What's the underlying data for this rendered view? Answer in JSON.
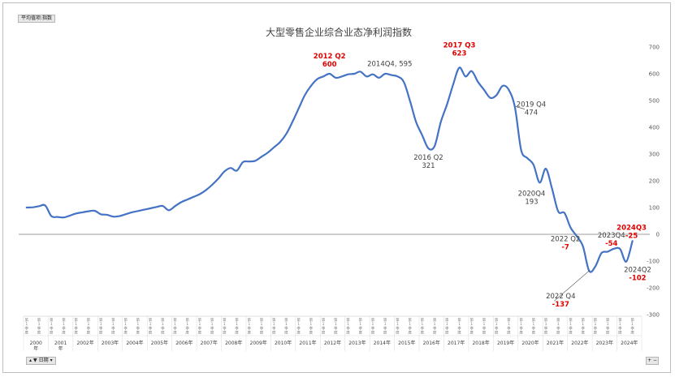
{
  "controls": {
    "pivot_value_field": "平均值项:指数",
    "date_filter_label": "日期",
    "filter_icon": "filter-icon",
    "dropdown_icon": "dropdown-icon",
    "expand_icon": "plus-icon",
    "collapse_icon": "minus-icon"
  },
  "colors": {
    "line": "#4472c4",
    "highlight": "#e00000",
    "axis": "#7f7f7f"
  },
  "chart_data": {
    "type": "line",
    "title": "大型零售企业综合业态净利润指数",
    "ylim": [
      -300,
      700
    ],
    "y_ticks": [
      700,
      600,
      500,
      400,
      300,
      200,
      100,
      0,
      -100,
      -200,
      -300
    ],
    "grid": false,
    "legend": "none",
    "x_axis_years": [
      "2000年",
      "2001年",
      "2002年",
      "2003年",
      "2004年",
      "2005年",
      "2006年",
      "2007年",
      "2008年",
      "2009年",
      "2010年",
      "2011年",
      "2012年",
      "2013年",
      "2014年",
      "2015年",
      "2016年",
      "2017年",
      "2018年",
      "2019年",
      "2020年",
      "2021年",
      "2022年",
      "2023年",
      "2024年"
    ],
    "x_axis_year_lines": [
      [
        "2000",
        "年"
      ],
      [
        "2001",
        "年"
      ]
    ],
    "x_axis_quarter_label": "第1季度",
    "series": [
      {
        "values": [
          {
            "x": "2000Q1",
            "y": 100
          },
          {
            "x": "2000Q2",
            "y": 101
          },
          {
            "x": "2000Q3",
            "y": 105
          },
          {
            "x": "2000Q4",
            "y": 108
          },
          {
            "x": "2001Q1",
            "y": 68
          },
          {
            "x": "2001Q2",
            "y": 65
          },
          {
            "x": "2001Q3",
            "y": 63
          },
          {
            "x": "2001Q4",
            "y": 70
          },
          {
            "x": "2002Q1",
            "y": 78
          },
          {
            "x": "2002Q2",
            "y": 82
          },
          {
            "x": "2002Q3",
            "y": 86
          },
          {
            "x": "2002Q4",
            "y": 88
          },
          {
            "x": "2003Q1",
            "y": 75
          },
          {
            "x": "2003Q2",
            "y": 73
          },
          {
            "x": "2003Q3",
            "y": 66
          },
          {
            "x": "2003Q4",
            "y": 68
          },
          {
            "x": "2004Q1",
            "y": 75
          },
          {
            "x": "2004Q2",
            "y": 82
          },
          {
            "x": "2004Q3",
            "y": 87
          },
          {
            "x": "2004Q4",
            "y": 92
          },
          {
            "x": "2005Q1",
            "y": 97
          },
          {
            "x": "2005Q2",
            "y": 102
          },
          {
            "x": "2005Q3",
            "y": 106
          },
          {
            "x": "2005Q4",
            "y": 90
          },
          {
            "x": "2006Q1",
            "y": 105
          },
          {
            "x": "2006Q2",
            "y": 120
          },
          {
            "x": "2006Q3",
            "y": 130
          },
          {
            "x": "2006Q4",
            "y": 140
          },
          {
            "x": "2007Q1",
            "y": 150
          },
          {
            "x": "2007Q2",
            "y": 165
          },
          {
            "x": "2007Q3",
            "y": 185
          },
          {
            "x": "2007Q4",
            "y": 208
          },
          {
            "x": "2008Q1",
            "y": 235
          },
          {
            "x": "2008Q2",
            "y": 248
          },
          {
            "x": "2008Q3",
            "y": 238
          },
          {
            "x": "2008Q4",
            "y": 270
          },
          {
            "x": "2009Q1",
            "y": 272
          },
          {
            "x": "2009Q2",
            "y": 275
          },
          {
            "x": "2009Q3",
            "y": 290
          },
          {
            "x": "2009Q4",
            "y": 305
          },
          {
            "x": "2010Q1",
            "y": 325
          },
          {
            "x": "2010Q2",
            "y": 345
          },
          {
            "x": "2010Q3",
            "y": 375
          },
          {
            "x": "2010Q4",
            "y": 420
          },
          {
            "x": "2011Q1",
            "y": 470
          },
          {
            "x": "2011Q2",
            "y": 520
          },
          {
            "x": "2011Q3",
            "y": 555
          },
          {
            "x": "2011Q4",
            "y": 580
          },
          {
            "x": "2012Q1",
            "y": 590
          },
          {
            "x": "2012Q2",
            "y": 600
          },
          {
            "x": "2012Q3",
            "y": 585
          },
          {
            "x": "2012Q4",
            "y": 590
          },
          {
            "x": "2013Q1",
            "y": 598
          },
          {
            "x": "2013Q2",
            "y": 600
          },
          {
            "x": "2013Q3",
            "y": 608
          },
          {
            "x": "2013Q4",
            "y": 590
          },
          {
            "x": "2014Q1",
            "y": 598
          },
          {
            "x": "2014Q2",
            "y": 585
          },
          {
            "x": "2014Q3",
            "y": 600
          },
          {
            "x": "2014Q4",
            "y": 595
          },
          {
            "x": "2015Q1",
            "y": 590
          },
          {
            "x": "2015Q2",
            "y": 570
          },
          {
            "x": "2015Q3",
            "y": 500
          },
          {
            "x": "2015Q4",
            "y": 420
          },
          {
            "x": "2016Q1",
            "y": 370
          },
          {
            "x": "2016Q2",
            "y": 321
          },
          {
            "x": "2016Q3",
            "y": 330
          },
          {
            "x": "2016Q4",
            "y": 420
          },
          {
            "x": "2017Q1",
            "y": 485
          },
          {
            "x": "2017Q2",
            "y": 560
          },
          {
            "x": "2017Q3",
            "y": 623
          },
          {
            "x": "2017Q4",
            "y": 590
          },
          {
            "x": "2018Q1",
            "y": 610
          },
          {
            "x": "2018Q2",
            "y": 570
          },
          {
            "x": "2018Q3",
            "y": 540
          },
          {
            "x": "2018Q4",
            "y": 510
          },
          {
            "x": "2019Q1",
            "y": 520
          },
          {
            "x": "2019Q2",
            "y": 555
          },
          {
            "x": "2019Q3",
            "y": 540
          },
          {
            "x": "2019Q4",
            "y": 474
          },
          {
            "x": "2020Q1",
            "y": 315
          },
          {
            "x": "2020Q2",
            "y": 285
          },
          {
            "x": "2020Q3",
            "y": 260
          },
          {
            "x": "2020Q4",
            "y": 193
          },
          {
            "x": "2021Q1",
            "y": 245
          },
          {
            "x": "2021Q2",
            "y": 170
          },
          {
            "x": "2021Q3",
            "y": 85
          },
          {
            "x": "2021Q4",
            "y": 80
          },
          {
            "x": "2022Q1",
            "y": 25
          },
          {
            "x": "2022Q2",
            "y": -7
          },
          {
            "x": "2022Q3",
            "y": -45
          },
          {
            "x": "2022Q4",
            "y": -137
          },
          {
            "x": "2023Q1",
            "y": -120
          },
          {
            "x": "2023Q2",
            "y": -70
          },
          {
            "x": "2023Q3",
            "y": -65
          },
          {
            "x": "2023Q4",
            "y": -54
          },
          {
            "x": "2024Q1",
            "y": -55
          },
          {
            "x": "2024Q2",
            "y": -102
          },
          {
            "x": "2024Q3",
            "y": -25
          }
        ]
      }
    ],
    "annotations": [
      {
        "x": "2012Q2",
        "lines": [
          "2012 Q2",
          "600"
        ],
        "style": "red"
      },
      {
        "x": "2014Q4",
        "lines": [
          "2014Q4, 595"
        ],
        "style": "normal"
      },
      {
        "x": "2016Q2",
        "lines": [
          "2016 Q2",
          "321"
        ],
        "style": "normal"
      },
      {
        "x": "2017Q3",
        "lines": [
          "2017 Q3",
          "623"
        ],
        "style": "red"
      },
      {
        "x": "2019Q4",
        "lines": [
          "2019 Q4",
          "474"
        ],
        "style": "normal"
      },
      {
        "x": "2020Q4",
        "lines": [
          "2020Q4",
          "193"
        ],
        "style": "normal"
      },
      {
        "x": "2022Q2",
        "lines": [
          "2022 Q2",
          "-7"
        ],
        "style": "mixed"
      },
      {
        "x": "2022Q4",
        "lines": [
          "2022 Q4",
          "-137"
        ],
        "style": "mixed"
      },
      {
        "x": "2023Q4",
        "lines": [
          "2023Q4",
          "-54"
        ],
        "style": "mixed"
      },
      {
        "x": "2024Q2",
        "lines": [
          "2024Q2",
          "-102"
        ],
        "style": "mixed"
      },
      {
        "x": "2024Q3",
        "lines": [
          "2024Q3",
          "-25"
        ],
        "style": "red"
      }
    ]
  }
}
